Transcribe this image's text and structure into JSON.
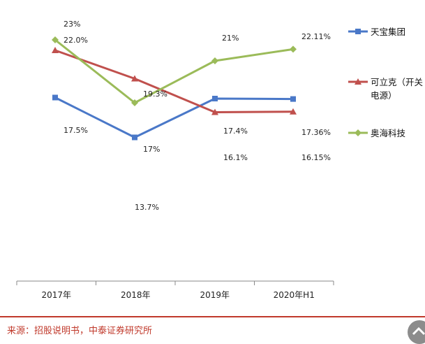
{
  "chart_data": {
    "type": "line",
    "categories": [
      "2017年",
      "2018年",
      "2019年",
      "2020年H1"
    ],
    "ylim": [
      0,
      26
    ],
    "grid": false,
    "legend_position": "right",
    "series": [
      {
        "name": "天宝集团",
        "values": [
          17.5,
          13.7,
          17.4,
          17.36
        ],
        "labels": [
          "17.5%",
          "13.7%",
          "17.4%",
          "17.36%"
        ],
        "color": "#4a78c8",
        "marker": "square"
      },
      {
        "name": "可立克（开关电源）",
        "legend_lines": [
          "可立克（开关",
          "电源）"
        ],
        "values": [
          22.0,
          19.3,
          16.1,
          16.15
        ],
        "labels": [
          "22.0%",
          "19.3%",
          "16.1%",
          "16.15%"
        ],
        "color": "#c0504d",
        "marker": "triangle"
      },
      {
        "name": "奥海科技",
        "values": [
          23,
          17,
          21,
          22.11
        ],
        "labels": [
          "23%",
          "17%",
          "21%",
          "22.11%"
        ],
        "color": "#9bbb59",
        "marker": "diamond"
      }
    ]
  },
  "source_text": "来源：招股说明书，中泰证券研究所",
  "scroll_top_icon": "chevron-up-icon"
}
